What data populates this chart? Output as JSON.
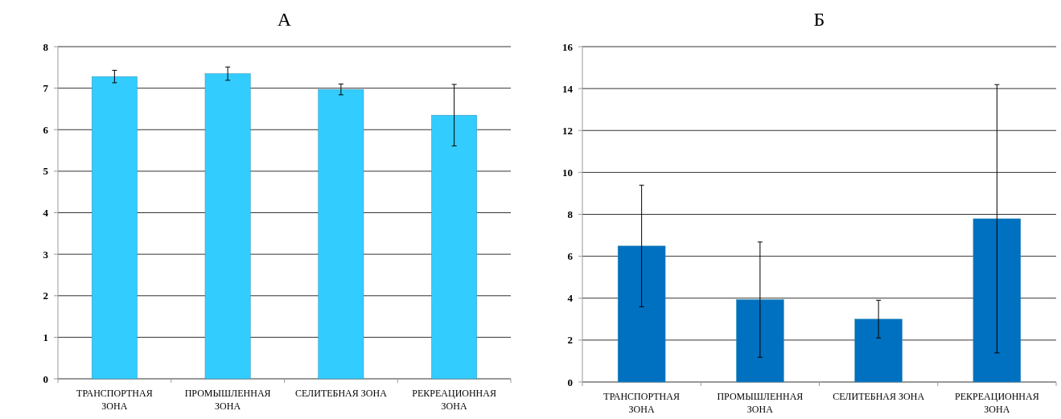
{
  "chart_data": [
    {
      "type": "bar",
      "title": "А",
      "categories": [
        "ТРАНСПОРТНАЯ ЗОНА",
        "ПРОМЫШЛЕННАЯ ЗОНА",
        "СЕЛИТЕБНАЯ ЗОНА",
        "РЕКРЕАЦИОННАЯ ЗОНА"
      ],
      "values": [
        7.28,
        7.35,
        6.97,
        6.35
      ],
      "errors": [
        0.15,
        0.16,
        0.13,
        0.74
      ],
      "color": "#33ccff",
      "ylim": [
        0,
        8
      ],
      "yticks": [
        0,
        1,
        2,
        3,
        4,
        5,
        6,
        7,
        8
      ],
      "grid": "y"
    },
    {
      "type": "bar",
      "title": "Б",
      "categories": [
        "ТРАНСПОРТНАЯ ЗОНА",
        "ПРОМЫШЛЕННАЯ ЗОНА",
        "СЕЛИТЕБНАЯ ЗОНА",
        "РЕКРЕАЦИОННАЯ ЗОНА"
      ],
      "values": [
        6.49,
        3.93,
        3.0,
        7.79
      ],
      "errors": [
        2.9,
        2.75,
        0.9,
        6.4
      ],
      "color": "#0070c0",
      "ylim": [
        0,
        16
      ],
      "yticks": [
        0,
        2,
        4,
        6,
        8,
        10,
        12,
        14,
        16
      ],
      "grid": "y"
    }
  ]
}
